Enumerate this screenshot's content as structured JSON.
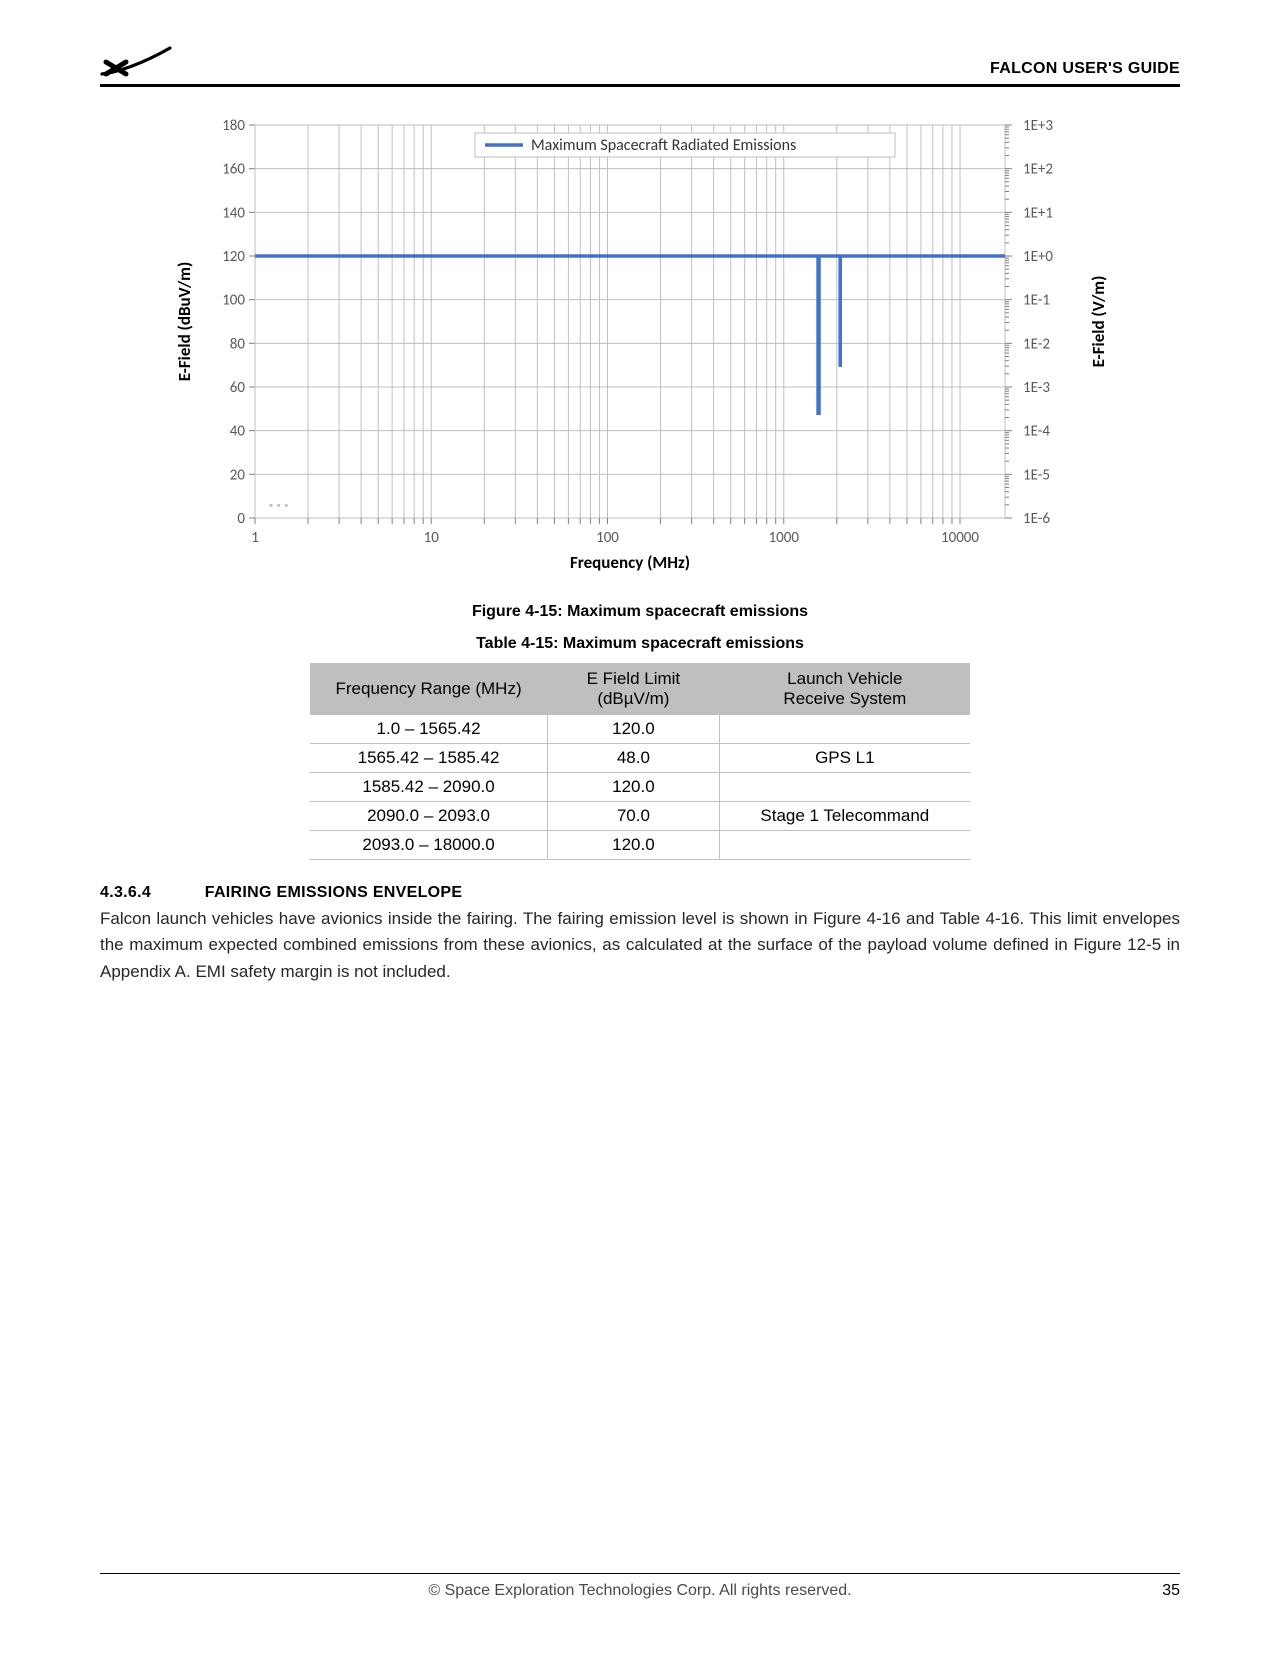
{
  "header": {
    "title": "FALCON USER'S GUIDE"
  },
  "chart": {
    "legend_label": "Maximum Spacecraft Radiated Emissions",
    "xlabel": "Frequency (MHz)",
    "ylabel_left": "E-Field (dBuV/m)",
    "ylabel_right": "E-Field (V/m)",
    "y_left_ticks": [
      0,
      20,
      40,
      60,
      80,
      100,
      120,
      140,
      160,
      180
    ],
    "y_right_ticks": [
      "1E-6",
      "1E-5",
      "1E-4",
      "1E-3",
      "1E-2",
      "1E-1",
      "1E+0",
      "1E+1",
      "1E+2",
      "1E+3"
    ],
    "x_ticks": [
      1,
      10,
      100,
      1000,
      10000
    ],
    "x_max": 18000,
    "line_color": "#4472c4",
    "line_width": 3.5,
    "grid_color": "#bfbfbf",
    "tick_color": "#7f7f7f",
    "background_color": "#ffffff",
    "label_fontsize": 15,
    "axis_title_fontsize": 17,
    "series": [
      {
        "x": 1.0,
        "y": 120.0
      },
      {
        "x": 1565.42,
        "y": 120.0
      },
      {
        "x": 1565.42,
        "y": 48.0
      },
      {
        "x": 1585.42,
        "y": 48.0
      },
      {
        "x": 1585.42,
        "y": 120.0
      },
      {
        "x": 2090.0,
        "y": 120.0
      },
      {
        "x": 2090.0,
        "y": 70.0
      },
      {
        "x": 2093.0,
        "y": 70.0
      },
      {
        "x": 2093.0,
        "y": 120.0
      },
      {
        "x": 18000.0,
        "y": 120.0
      }
    ]
  },
  "figure_caption": "Figure 4-15: Maximum spacecraft emissions",
  "table_caption": "Table 4-15: Maximum spacecraft emissions",
  "table": {
    "columns": [
      "Frequency Range (MHz)",
      "E Field Limit (dBµV/m)",
      "Launch Vehicle Receive System"
    ],
    "rows": [
      [
        "1.0 – 1565.42",
        "120.0",
        ""
      ],
      [
        "1565.42 – 1585.42",
        "48.0",
        "GPS L1"
      ],
      [
        "1585.42 – 2090.0",
        "120.0",
        ""
      ],
      [
        "2090.0 – 2093.0",
        "70.0",
        "Stage 1 Telecommand"
      ],
      [
        "2093.0 – 18000.0",
        "120.0",
        ""
      ]
    ]
  },
  "section": {
    "number": "4.3.6.4",
    "title": "FAIRING EMISSIONS ENVELOPE",
    "body": "Falcon launch vehicles have avionics inside the fairing. The fairing emission level is shown in Figure 4-16 and Table 4-16. This limit envelopes the maximum expected combined emissions from these avionics, as calculated at the surface of the payload volume defined in Figure 12-5 in Appendix A. EMI safety margin is not included."
  },
  "footer": {
    "copyright": "© Space Exploration Technologies Corp. All rights reserved.",
    "page": "35"
  }
}
